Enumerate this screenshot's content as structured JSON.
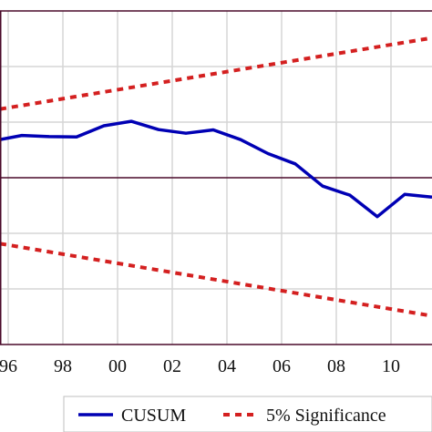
{
  "chart_data": {
    "type": "line",
    "title": "",
    "xlabel": "",
    "ylabel": "",
    "x_tick_labels": [
      {
        "x": 1996,
        "label": "96"
      },
      {
        "x": 1998,
        "label": "98"
      },
      {
        "x": 2000,
        "label": "00"
      },
      {
        "x": 2002,
        "label": "02"
      },
      {
        "x": 2004,
        "label": "04"
      },
      {
        "x": 2006,
        "label": "06"
      },
      {
        "x": 2008,
        "label": "08"
      },
      {
        "x": 2010,
        "label": "10"
      }
    ],
    "xlim": [
      1995.7,
      2011.5
    ],
    "ylim": [
      -60,
      60
    ],
    "y_gridlines": [
      -40,
      -20,
      20,
      40
    ],
    "zero_line": 0,
    "grid": true,
    "legend_position": "bottom",
    "series": [
      {
        "name": "CUSUM",
        "color": "#0000b4",
        "style": "solid",
        "x": [
          1995.7,
          1996.5,
          1997.5,
          1998.5,
          1999.5,
          2000.5,
          2001.5,
          2002.5,
          2003.5,
          2004.5,
          2005.5,
          2006.5,
          2007.5,
          2008.5,
          2009.5,
          2010.5,
          2011.5
        ],
        "y": [
          13.7,
          15.2,
          14.8,
          14.7,
          18.7,
          20.3,
          17.3,
          16.0,
          17.2,
          13.7,
          8.7,
          5.0,
          -3.0,
          -6.3,
          -14.0,
          -6.0,
          -7.0
        ]
      },
      {
        "name": "5% Significance",
        "color": "#d42020",
        "style": "dashed",
        "x": [
          1995.7,
          2011.5
        ],
        "y": [
          24.7,
          50.3
        ]
      },
      {
        "name": "",
        "color": "#d42020",
        "style": "dashed",
        "x": [
          1995.7,
          2011.5
        ],
        "y": [
          -23.7,
          -49.7
        ]
      }
    ]
  }
}
